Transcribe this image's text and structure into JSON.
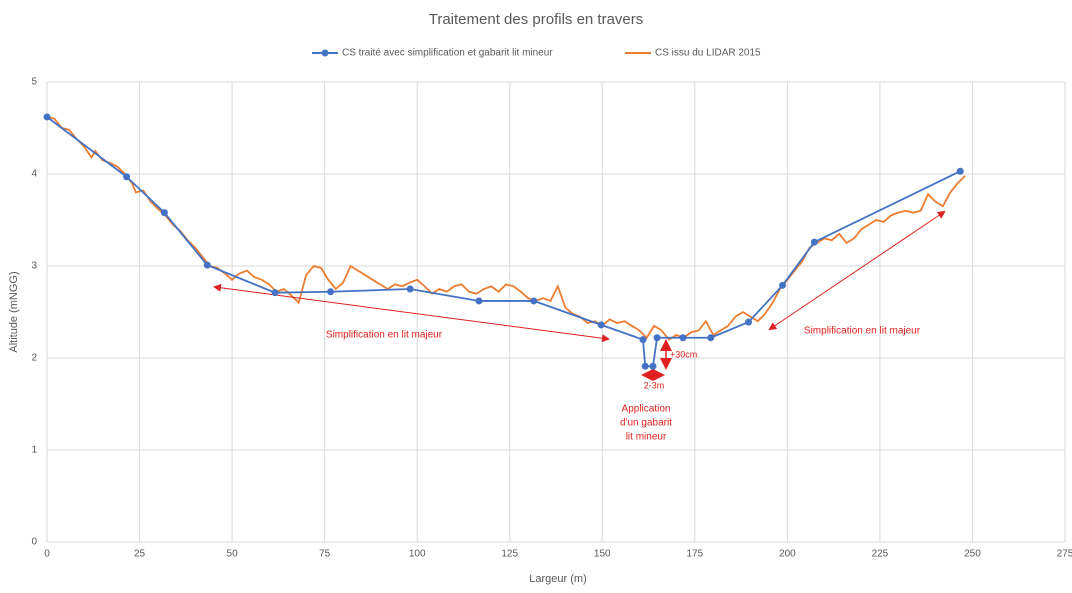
{
  "chart_data": {
    "type": "line",
    "title": "Traitement des profils en travers",
    "x_label": "Largeur (m)",
    "y_label": "Altitude (mNGG)",
    "xlim": [
      0,
      275
    ],
    "ylim": [
      0,
      5
    ],
    "xticks": [
      0,
      25,
      50,
      75,
      100,
      125,
      150,
      175,
      200,
      225,
      250,
      275
    ],
    "yticks": [
      0,
      1,
      2,
      3,
      4,
      5
    ],
    "grid": true,
    "legend": "top",
    "series": [
      {
        "name": "CS traité avec simplification et gabarit lit mineur",
        "color": "#4472c4",
        "marker": "circle",
        "x": [
          0,
          21.5,
          31.7,
          43.3,
          61.6,
          76.6,
          98.1,
          116.7,
          131.5,
          149.7,
          161.0,
          161.6,
          163.7,
          164.8,
          171.8,
          179.3,
          189.5,
          198.7,
          207.3,
          246.7
        ],
        "values": [
          4.62,
          3.97,
          3.58,
          3.01,
          2.71,
          2.72,
          2.75,
          2.62,
          2.62,
          2.36,
          2.2,
          1.91,
          1.91,
          2.22,
          2.22,
          2.22,
          2.39,
          2.79,
          3.26,
          4.03
        ]
      },
      {
        "name": "CS issu du LIDAR 2015",
        "color": "#ed7d31",
        "marker": "none",
        "x": [
          0,
          2,
          4,
          6,
          8,
          10,
          12,
          13,
          15,
          17,
          19,
          21,
          23,
          24,
          26,
          28,
          30,
          32,
          34,
          36,
          38,
          40,
          42,
          44,
          46,
          48,
          50,
          52,
          54,
          56,
          58,
          60,
          62,
          64,
          66,
          68,
          69,
          70,
          72,
          74,
          76,
          78,
          80,
          82,
          84,
          86,
          88,
          90,
          92,
          94,
          96,
          98,
          100,
          102,
          104,
          106,
          108,
          110,
          112,
          114,
          116,
          118,
          120,
          122,
          124,
          126,
          128,
          130,
          132,
          134,
          136,
          138,
          140,
          142,
          144,
          146,
          148,
          150,
          152,
          154,
          156,
          158,
          160,
          162,
          164,
          166,
          168,
          170,
          172,
          174,
          176,
          178,
          180,
          182,
          184,
          186,
          188,
          190,
          192,
          194,
          196,
          198,
          200,
          202,
          204,
          206,
          208,
          210,
          212,
          214,
          216,
          218,
          220,
          222,
          224,
          226,
          228,
          230,
          232,
          234,
          236,
          238,
          240,
          242,
          244,
          246,
          248
        ],
        "values": [
          4.62,
          4.6,
          4.5,
          4.48,
          4.38,
          4.3,
          4.18,
          4.25,
          4.15,
          4.12,
          4.08,
          4.0,
          3.9,
          3.8,
          3.82,
          3.7,
          3.62,
          3.55,
          3.45,
          3.38,
          3.28,
          3.2,
          3.1,
          3.0,
          2.98,
          2.92,
          2.85,
          2.92,
          2.95,
          2.88,
          2.85,
          2.8,
          2.72,
          2.75,
          2.68,
          2.6,
          2.75,
          2.9,
          3.0,
          2.98,
          2.85,
          2.75,
          2.82,
          3.0,
          2.95,
          2.9,
          2.85,
          2.8,
          2.75,
          2.8,
          2.78,
          2.82,
          2.85,
          2.78,
          2.7,
          2.75,
          2.72,
          2.78,
          2.8,
          2.72,
          2.7,
          2.75,
          2.78,
          2.72,
          2.8,
          2.78,
          2.72,
          2.65,
          2.62,
          2.65,
          2.62,
          2.78,
          2.55,
          2.48,
          2.45,
          2.38,
          2.4,
          2.35,
          2.42,
          2.38,
          2.4,
          2.35,
          2.3,
          2.22,
          2.35,
          2.3,
          2.2,
          2.25,
          2.22,
          2.28,
          2.3,
          2.4,
          2.25,
          2.3,
          2.35,
          2.45,
          2.5,
          2.45,
          2.4,
          2.48,
          2.6,
          2.75,
          2.85,
          2.95,
          3.05,
          3.2,
          3.25,
          3.3,
          3.28,
          3.35,
          3.25,
          3.3,
          3.4,
          3.45,
          3.5,
          3.48,
          3.55,
          3.58,
          3.6,
          3.58,
          3.6,
          3.78,
          3.7,
          3.65,
          3.8,
          3.9,
          3.98
        ]
      }
    ],
    "annotations": [
      {
        "text": "Simplification en lit majeur"
      },
      {
        "text": "Simplification en lit majeur"
      },
      {
        "text": "+30cm"
      },
      {
        "text": "2-3m"
      },
      {
        "lines": [
          "Application",
          "d'un gabarit",
          "lit mineur"
        ]
      }
    ]
  }
}
